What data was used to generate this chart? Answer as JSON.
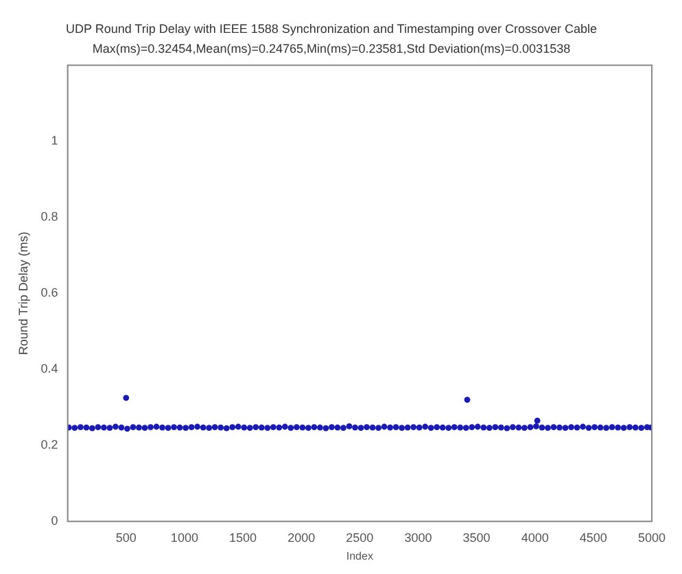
{
  "chart_data": {
    "type": "scatter",
    "title": "UDP Round Trip Delay with IEEE 1588 Synchronization and Timestamping over Crossover Cable",
    "subtitle": "Max(ms)=0.32454,Mean(ms)=0.24765,Min(ms)=0.23581,Std Deviation(ms)=0.0031538",
    "xlabel": "Index",
    "ylabel": "Round Trip Delay (ms)",
    "series": [
      {
        "color": "#1a1ab4",
        "x": [
          10,
          60,
          110,
          160,
          210,
          260,
          310,
          360,
          410,
          460,
          510,
          560,
          610,
          660,
          710,
          760,
          810,
          860,
          910,
          960,
          1010,
          1060,
          1110,
          1160,
          1210,
          1260,
          1310,
          1360,
          1410,
          1460,
          1510,
          1560,
          1610,
          1660,
          1710,
          1760,
          1810,
          1860,
          1910,
          1960,
          2010,
          2060,
          2110,
          2160,
          2210,
          2260,
          2310,
          2360,
          2410,
          2460,
          2510,
          2560,
          2610,
          2660,
          2710,
          2760,
          2810,
          2860,
          2910,
          2960,
          3010,
          3060,
          3110,
          3160,
          3210,
          3260,
          3310,
          3360,
          3410,
          3460,
          3510,
          3560,
          3610,
          3660,
          3710,
          3760,
          3810,
          3860,
          3910,
          3960,
          4010,
          4060,
          4110,
          4160,
          4210,
          4260,
          4310,
          4360,
          4410,
          4460,
          4510,
          4560,
          4610,
          4660,
          4710,
          4760,
          4810,
          4860,
          4910,
          4960,
          4995,
          500,
          3420,
          4020
        ],
        "values": [
          0.247,
          0.246,
          0.248,
          0.247,
          0.245,
          0.248,
          0.247,
          0.246,
          0.249,
          0.247,
          0.244,
          0.248,
          0.247,
          0.246,
          0.248,
          0.249,
          0.247,
          0.246,
          0.248,
          0.247,
          0.246,
          0.248,
          0.249,
          0.247,
          0.246,
          0.248,
          0.247,
          0.245,
          0.248,
          0.249,
          0.247,
          0.246,
          0.248,
          0.247,
          0.246,
          0.248,
          0.247,
          0.249,
          0.246,
          0.248,
          0.247,
          0.246,
          0.248,
          0.247,
          0.245,
          0.248,
          0.247,
          0.246,
          0.25,
          0.247,
          0.246,
          0.248,
          0.247,
          0.246,
          0.249,
          0.247,
          0.248,
          0.246,
          0.247,
          0.248,
          0.247,
          0.249,
          0.246,
          0.248,
          0.247,
          0.246,
          0.248,
          0.247,
          0.246,
          0.248,
          0.249,
          0.247,
          0.246,
          0.248,
          0.247,
          0.245,
          0.248,
          0.247,
          0.246,
          0.248,
          0.25,
          0.247,
          0.246,
          0.248,
          0.247,
          0.246,
          0.248,
          0.247,
          0.249,
          0.246,
          0.248,
          0.247,
          0.246,
          0.248,
          0.247,
          0.246,
          0.248,
          0.247,
          0.246,
          0.248,
          0.247,
          0.325,
          0.32,
          0.265
        ]
      }
    ],
    "xlim": [
      0,
      5000
    ],
    "xticks": [
      500,
      1000,
      1500,
      2000,
      2500,
      3000,
      3500,
      4000,
      4500,
      5000
    ],
    "ylim": [
      0,
      1.2
    ],
    "yticks": [
      0,
      0.2,
      0.4,
      0.6,
      0.8,
      1
    ],
    "grid": false,
    "legend": false,
    "marker": "circle"
  }
}
